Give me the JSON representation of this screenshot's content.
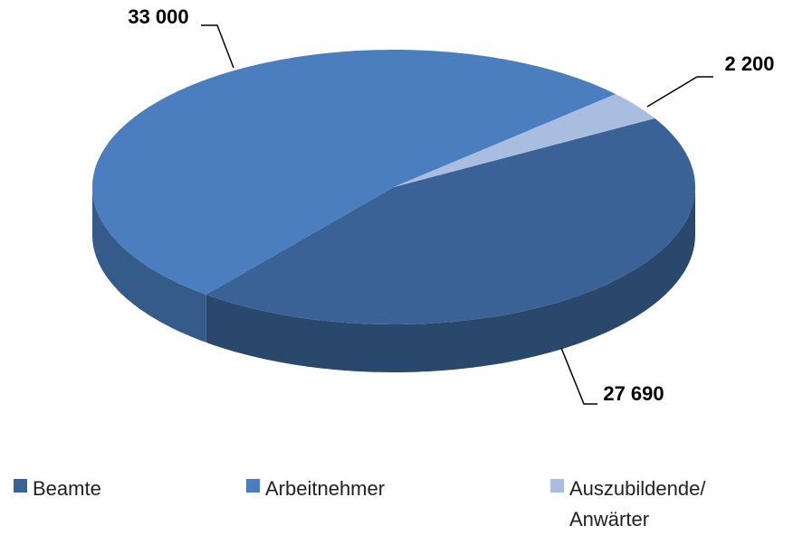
{
  "chart_data": {
    "type": "pie3d",
    "categories": [
      "Beamte",
      "Arbeitnehmer",
      "Auszubildende/ Anwärter"
    ],
    "values": [
      27690,
      33000,
      2200
    ],
    "value_labels": [
      "27 690",
      "33 000",
      "2 200"
    ],
    "colors": [
      "#3b6296",
      "#4a7ebf",
      "#a9bde0"
    ],
    "legend": "bottom"
  }
}
